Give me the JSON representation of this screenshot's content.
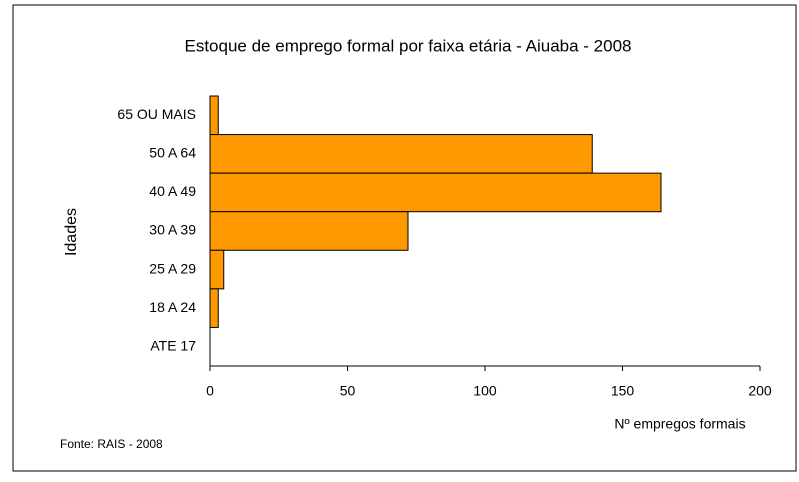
{
  "chart_data": {
    "type": "hbar",
    "title": "Estoque de emprego formal por faixa etária - Aiuaba - 2008",
    "categories": [
      "65 OU MAIS",
      "50 A 64",
      "40 A 49",
      "30 A 39",
      "25 A 29",
      "18 A 24",
      "ATE 17"
    ],
    "values": [
      3,
      139,
      164,
      72,
      5,
      3,
      0
    ],
    "color": "#ff9900",
    "xlim": [
      0,
      200
    ],
    "xticks": [
      0,
      50,
      100,
      150,
      200
    ],
    "xlabel": "Nº empregos formais",
    "ylabel": "Idades",
    "source": "Fonte: RAIS - 2008"
  }
}
